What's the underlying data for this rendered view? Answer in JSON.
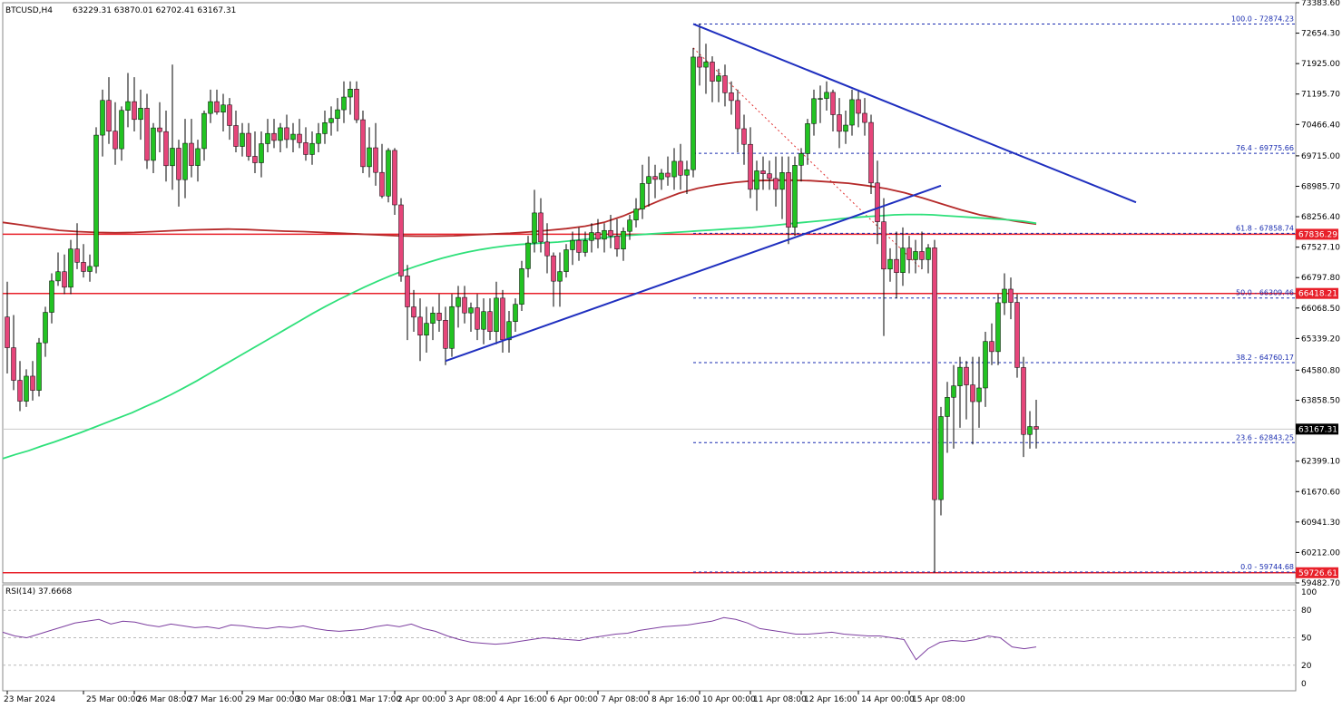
{
  "header": {
    "symbol": "BTCUSD,H4",
    "ohlc": "63229.31 63870.01 62702.41 63167.31",
    "rsi_label": "RSI(14) 37.6668"
  },
  "price_axis": {
    "ticks": [
      "73383.60",
      "72654.30",
      "71925.00",
      "71195.70",
      "70466.40",
      "69715.00",
      "68985.70",
      "68256.40",
      "67527.10",
      "66797.80",
      "66068.50",
      "65339.20",
      "64580.80",
      "63858.50",
      "62399.10",
      "61670.60",
      "60941.30",
      "60212.00",
      "59482.70"
    ],
    "tick_values": [
      73383.6,
      72654.3,
      71925.0,
      71195.7,
      70466.4,
      69715.0,
      68985.7,
      68256.4,
      67527.1,
      66797.8,
      66068.5,
      65339.2,
      64580.8,
      63858.5,
      62399.1,
      61670.6,
      60941.3,
      60212.0,
      59482.7
    ],
    "current_price": "63167.31",
    "current_value": 63167.31
  },
  "rsi_axis": {
    "ticks": [
      "100",
      "80",
      "50",
      "20",
      "0"
    ],
    "tick_values": [
      100,
      80,
      50,
      20,
      0
    ],
    "levels": [
      80,
      50,
      20
    ]
  },
  "time_axis": {
    "labels": [
      "23 Mar 2024",
      "25 Mar 00:00",
      "26 Mar 08:00",
      "27 Mar 16:00",
      "29 Mar 00:00",
      "30 Mar 08:00",
      "31 Mar 17:00",
      "2 Apr 00:00",
      "3 Apr 08:00",
      "4 Apr 16:00",
      "6 Apr 00:00",
      "7 Apr 08:00",
      "8 Apr 16:00",
      "10 Apr 00:00",
      "11 Apr 08:00",
      "12 Apr 16:00",
      "14 Apr 00:00",
      "15 Apr 08:00"
    ],
    "bar_index": [
      0,
      12,
      20,
      28,
      37,
      45,
      53,
      61,
      69,
      77,
      85,
      93,
      101,
      109,
      117,
      125,
      134,
      142
    ]
  },
  "horizontal_levels": [
    {
      "value": 67836.29,
      "label": "67836.29",
      "color": "#e8202a"
    },
    {
      "value": 66418.21,
      "label": "66418.21",
      "color": "#e8202a"
    },
    {
      "value": 59726.61,
      "label": "59726.61",
      "color": "#e8202a"
    }
  ],
  "fibonacci": {
    "color": "#1a2db0",
    "levels": [
      {
        "ratio": "100.0",
        "value": 72874.23,
        "label": "100.0 - 72874.23"
      },
      {
        "ratio": "76.4",
        "value": 69775.66,
        "label": "76.4 - 69775.66"
      },
      {
        "ratio": "61.8",
        "value": 67858.74,
        "label": "61.8 - 67858.74"
      },
      {
        "ratio": "50.0",
        "value": 66309.46,
        "label": "50.0 - 66309.46"
      },
      {
        "ratio": "38.2",
        "value": 64760.17,
        "label": "38.2 - 64760.17"
      },
      {
        "ratio": "23.6",
        "value": 62843.25,
        "label": "23.6 - 62843.25"
      },
      {
        "ratio": "0.0",
        "value": 59744.68,
        "label": "0.0 - 59744.68"
      }
    ]
  },
  "colors": {
    "bull": "#22c322",
    "bear": "#e6457a",
    "trendline": "#1f2fbf",
    "ma_fast": "#2ee07a",
    "ma_slow": "#b52a2a",
    "rsi": "#7d3fa0",
    "grid_dashed": "#b9b9b9",
    "border": "#8a8a8a"
  },
  "chart_data": {
    "type": "candlestick",
    "symbol": "BTCUSD",
    "timeframe": "H4",
    "ylim": [
      59482.7,
      73383.6
    ],
    "candles": [
      [
        65853,
        66700,
        64500,
        65118
      ],
      [
        65118,
        65900,
        64100,
        64336
      ],
      [
        64336,
        64800,
        63600,
        63836
      ],
      [
        63836,
        64600,
        63700,
        64436
      ],
      [
        64436,
        64800,
        63850,
        64096
      ],
      [
        64096,
        65350,
        63950,
        65235
      ],
      [
        65235,
        66100,
        64900,
        65965
      ],
      [
        65965,
        66900,
        65700,
        66718
      ],
      [
        66718,
        67400,
        66600,
        66938
      ],
      [
        66938,
        67350,
        66400,
        66567
      ],
      [
        66567,
        67700,
        66400,
        67484
      ],
      [
        67484,
        68100,
        67000,
        67164
      ],
      [
        67164,
        67600,
        66800,
        66944
      ],
      [
        66944,
        67350,
        66700,
        67066
      ],
      [
        67066,
        70400,
        66900,
        70211
      ],
      [
        70211,
        71300,
        69700,
        71044
      ],
      [
        71044,
        71600,
        70000,
        70306
      ],
      [
        70306,
        71000,
        69500,
        69884
      ],
      [
        69884,
        70900,
        69600,
        70804
      ],
      [
        70804,
        71700,
        70400,
        71014
      ],
      [
        71014,
        71600,
        70300,
        70586
      ],
      [
        70586,
        71300,
        70100,
        70856
      ],
      [
        70856,
        71200,
        69400,
        69606
      ],
      [
        69606,
        70500,
        69300,
        70384
      ],
      [
        70384,
        71000,
        69800,
        70296
      ],
      [
        70296,
        70800,
        69100,
        69478
      ],
      [
        69478,
        71900,
        68900,
        69898
      ],
      [
        69898,
        70100,
        68500,
        69144
      ],
      [
        69144,
        70600,
        68700,
        70016
      ],
      [
        70016,
        70600,
        69200,
        69482
      ],
      [
        69482,
        70100,
        69100,
        69888
      ],
      [
        69888,
        70800,
        69600,
        70731
      ],
      [
        70731,
        71300,
        70500,
        71014
      ],
      [
        71014,
        71300,
        70700,
        70761
      ],
      [
        70761,
        71200,
        70300,
        70934
      ],
      [
        70934,
        71100,
        70100,
        70441
      ],
      [
        70441,
        70800,
        69800,
        69940
      ],
      [
        69940,
        70500,
        69700,
        70255
      ],
      [
        70255,
        70500,
        69600,
        69703
      ],
      [
        69703,
        70300,
        69300,
        69549
      ],
      [
        69549,
        70300,
        69200,
        70006
      ],
      [
        70006,
        70600,
        69800,
        70252
      ],
      [
        70252,
        70600,
        69900,
        70084
      ],
      [
        70084,
        70500,
        69800,
        70388
      ],
      [
        70388,
        70700,
        69900,
        70105
      ],
      [
        70105,
        70500,
        69800,
        70233
      ],
      [
        70233,
        70600,
        69900,
        70031
      ],
      [
        70031,
        70400,
        69600,
        69746
      ],
      [
        69746,
        70300,
        69500,
        70013
      ],
      [
        70013,
        70500,
        69800,
        70246
      ],
      [
        70246,
        70800,
        70000,
        70510
      ],
      [
        70510,
        70900,
        70200,
        70610
      ],
      [
        70610,
        71100,
        70300,
        70819
      ],
      [
        70819,
        71500,
        70500,
        71124
      ],
      [
        71124,
        71500,
        70700,
        71314
      ],
      [
        71314,
        71500,
        70500,
        70580
      ],
      [
        70580,
        70800,
        69300,
        69455
      ],
      [
        69455,
        70400,
        69200,
        69908
      ],
      [
        69908,
        70500,
        69000,
        69318
      ],
      [
        69318,
        70000,
        68700,
        68752
      ],
      [
        68752,
        69900,
        68600,
        69845
      ],
      [
        69845,
        69900,
        68300,
        68540
      ],
      [
        68540,
        68700,
        66700,
        66837
      ],
      [
        66837,
        67100,
        65300,
        66096
      ],
      [
        66096,
        66500,
        65500,
        65850
      ],
      [
        65850,
        66300,
        64800,
        65418
      ],
      [
        65418,
        66100,
        65000,
        65703
      ],
      [
        65703,
        66100,
        65300,
        65948
      ],
      [
        65948,
        66400,
        65500,
        65776
      ],
      [
        65776,
        66100,
        64700,
        65102
      ],
      [
        65102,
        66400,
        64900,
        66103
      ],
      [
        66103,
        66600,
        65600,
        66323
      ],
      [
        66323,
        66600,
        65700,
        65951
      ],
      [
        65951,
        66200,
        65500,
        66074
      ],
      [
        66074,
        66400,
        65300,
        65560
      ],
      [
        65560,
        66300,
        65200,
        65983
      ],
      [
        65983,
        66300,
        65300,
        65506
      ],
      [
        65506,
        66700,
        65200,
        66306
      ],
      [
        66306,
        66500,
        65000,
        65307
      ],
      [
        65307,
        66000,
        65000,
        65744
      ],
      [
        65744,
        66300,
        65500,
        66158
      ],
      [
        66158,
        67200,
        66000,
        67012
      ],
      [
        67012,
        67800,
        66800,
        67627
      ],
      [
        67627,
        68900,
        67400,
        68347
      ],
      [
        68347,
        68700,
        67400,
        67652
      ],
      [
        67652,
        68100,
        66900,
        67320
      ],
      [
        67320,
        67400,
        66100,
        66712
      ],
      [
        66712,
        67400,
        66100,
        66941
      ],
      [
        66941,
        67600,
        66800,
        67465
      ],
      [
        67465,
        67900,
        67100,
        67690
      ],
      [
        67690,
        68000,
        67200,
        67402
      ],
      [
        67402,
        67900,
        67300,
        67687
      ],
      [
        67687,
        68100,
        67400,
        67877
      ],
      [
        67877,
        68200,
        67500,
        67718
      ],
      [
        67718,
        68100,
        67400,
        67927
      ],
      [
        67927,
        68300,
        67500,
        67794
      ],
      [
        67794,
        68200,
        67300,
        67482
      ],
      [
        67482,
        68000,
        67200,
        67906
      ],
      [
        67906,
        68300,
        67700,
        68177
      ],
      [
        68177,
        68700,
        68000,
        68440
      ],
      [
        68440,
        69500,
        68200,
        69053
      ],
      [
        69053,
        69700,
        68500,
        69220
      ],
      [
        69220,
        69500,
        68700,
        69150
      ],
      [
        69150,
        69400,
        68900,
        69300
      ],
      [
        69300,
        69700,
        69000,
        69212
      ],
      [
        69212,
        69900,
        68900,
        69584
      ],
      [
        69584,
        70000,
        68900,
        69252
      ],
      [
        69252,
        69600,
        68800,
        69383
      ],
      [
        69383,
        72300,
        69200,
        72082
      ],
      [
        72082,
        72874,
        71400,
        71840
      ],
      [
        71840,
        72400,
        71200,
        71963
      ],
      [
        71963,
        72100,
        71000,
        71502
      ],
      [
        71502,
        71800,
        71000,
        71634
      ],
      [
        71634,
        71900,
        70900,
        71226
      ],
      [
        71226,
        71500,
        70700,
        71040
      ],
      [
        71040,
        71300,
        69800,
        70365
      ],
      [
        70365,
        70700,
        69500,
        69991
      ],
      [
        69991,
        70400,
        68700,
        68912
      ],
      [
        68912,
        69600,
        68400,
        69356
      ],
      [
        69356,
        69700,
        68900,
        69286
      ],
      [
        69286,
        69600,
        68900,
        69173
      ],
      [
        69173,
        69700,
        68500,
        68912
      ],
      [
        68912,
        69700,
        68200,
        69315
      ],
      [
        69315,
        69700,
        67600,
        68004
      ],
      [
        68004,
        69700,
        67800,
        69488
      ],
      [
        69488,
        69900,
        69100,
        69769
      ],
      [
        69769,
        70600,
        69500,
        70487
      ],
      [
        70487,
        71300,
        70200,
        71085
      ],
      [
        71085,
        71400,
        70500,
        71090
      ],
      [
        71090,
        71500,
        70800,
        71236
      ],
      [
        71236,
        71300,
        70300,
        70701
      ],
      [
        70701,
        71100,
        69900,
        70302
      ],
      [
        70302,
        70800,
        70000,
        70451
      ],
      [
        70451,
        71300,
        70200,
        71061
      ],
      [
        71061,
        71300,
        70400,
        70734
      ],
      [
        70734,
        71100,
        70200,
        70515
      ],
      [
        70515,
        70700,
        68800,
        69065
      ],
      [
        69065,
        69600,
        67600,
        68135
      ],
      [
        68135,
        68700,
        65400,
        67002
      ],
      [
        67002,
        67500,
        66700,
        67234
      ],
      [
        67234,
        67900,
        66300,
        66917
      ],
      [
        66917,
        68000,
        66600,
        67506
      ],
      [
        67506,
        67800,
        66900,
        67227
      ],
      [
        67227,
        67700,
        66900,
        67423
      ],
      [
        67423,
        67900,
        67000,
        67228
      ],
      [
        67228,
        67600,
        66900,
        67511
      ],
      [
        67511,
        67700,
        59726,
        61478
      ],
      [
        61478,
        63700,
        61100,
        63469
      ],
      [
        63469,
        64300,
        62600,
        63929
      ],
      [
        63929,
        64700,
        62700,
        64204
      ],
      [
        64204,
        64900,
        63200,
        64649
      ],
      [
        64649,
        64800,
        63400,
        64227
      ],
      [
        64227,
        64900,
        62800,
        63826
      ],
      [
        63826,
        64900,
        63200,
        64153
      ],
      [
        64153,
        65500,
        63700,
        65268
      ],
      [
        65268,
        65700,
        64700,
        65024
      ],
      [
        65024,
        66400,
        64700,
        66195
      ],
      [
        66195,
        66900,
        65900,
        66521
      ],
      [
        66521,
        66800,
        65800,
        66204
      ],
      [
        66204,
        66400,
        64400,
        64643
      ],
      [
        64643,
        64900,
        62500,
        63040
      ],
      [
        63040,
        63600,
        62700,
        63229
      ],
      [
        63229,
        63870,
        62702,
        63167
      ]
    ],
    "ma_fast": [
      62460,
      62560,
      62650,
      62760,
      62860,
      62970,
      63080,
      63200,
      63320,
      63440,
      63560,
      63700,
      63840,
      63990,
      64150,
      64320,
      64500,
      64680,
      64860,
      65040,
      65220,
      65400,
      65580,
      65760,
      65940,
      66110,
      66270,
      66420,
      66570,
      66710,
      66840,
      66960,
      67070,
      67170,
      67260,
      67340,
      67410,
      67470,
      67520,
      67560,
      67590,
      67610,
      67630,
      67650,
      67680,
      67710,
      67740,
      67770,
      67800,
      67820,
      67840,
      67860,
      67880,
      67900,
      67920,
      67940,
      67960,
      67980,
      68000,
      68030,
      68060,
      68090,
      68120,
      68150,
      68180,
      68210,
      68240,
      68260,
      68280,
      68300,
      68310,
      68310,
      68300,
      68280,
      68260,
      68240,
      68220,
      68200,
      68180,
      68150,
      68100
    ],
    "ma_slow": [
      68120,
      68060,
      67990,
      67930,
      67900,
      67880,
      67870,
      67880,
      67900,
      67920,
      67940,
      67950,
      67960,
      67950,
      67930,
      67910,
      67900,
      67880,
      67860,
      67840,
      67820,
      67800,
      67790,
      67790,
      67800,
      67820,
      67840,
      67860,
      67890,
      67930,
      67970,
      68030,
      68120,
      68270,
      68460,
      68650,
      68820,
      68940,
      69020,
      69080,
      69120,
      69130,
      69130,
      69120,
      69090,
      69060,
      69000,
      68930,
      68830,
      68700,
      68560,
      68420,
      68300,
      68220,
      68140,
      68080
    ],
    "rsi": [
      56,
      52,
      50,
      54,
      58,
      62,
      66,
      68,
      70,
      65,
      68,
      67,
      64,
      62,
      65,
      63,
      61,
      62,
      60,
      64,
      63,
      61,
      60,
      62,
      61,
      63,
      60,
      58,
      57,
      58,
      59,
      62,
      64,
      62,
      65,
      60,
      57,
      52,
      48,
      45,
      44,
      43,
      44,
      46,
      48,
      50,
      49,
      48,
      47,
      50,
      52,
      54,
      55,
      58,
      60,
      62,
      63,
      64,
      66,
      68,
      72,
      70,
      66,
      60,
      58,
      56,
      54,
      54,
      55,
      56,
      54,
      53,
      52,
      52,
      50,
      48,
      26,
      38,
      45,
      47,
      46,
      48,
      52,
      50,
      40,
      38,
      40
    ]
  }
}
